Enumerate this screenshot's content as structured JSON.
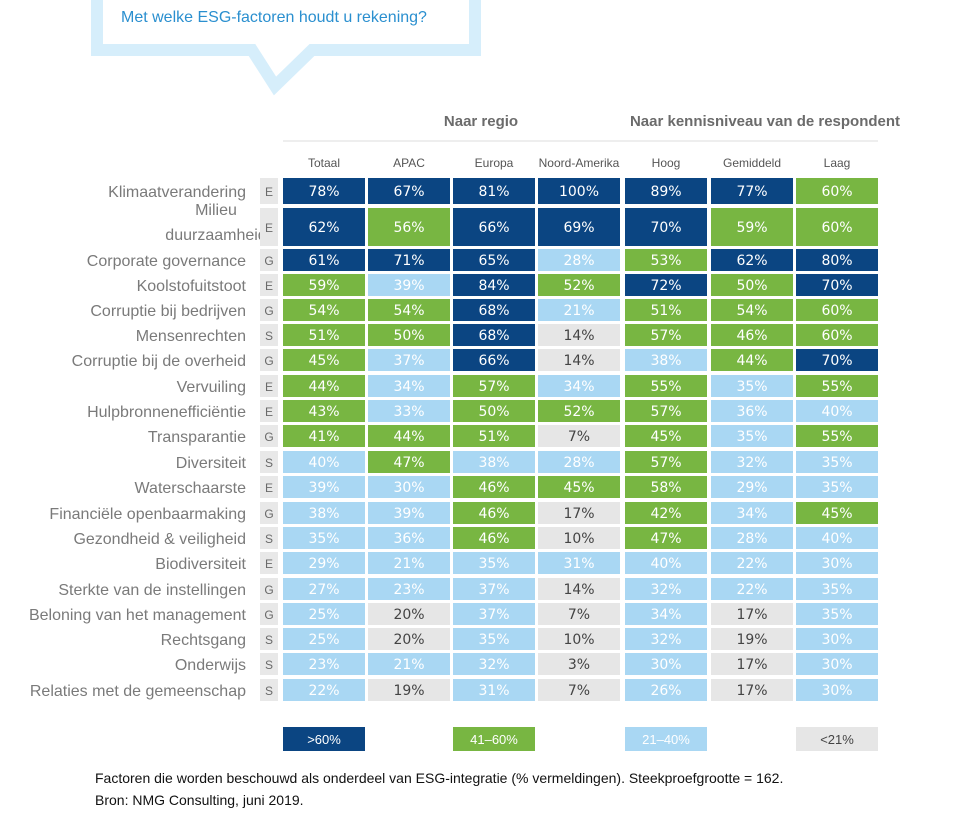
{
  "question": "Met welke ESG-factoren houdt u rekening?",
  "chart_data": {
    "type": "table",
    "title": "Met welke ESG-factoren houdt u rekening?",
    "group_headers": [
      "Naar regio",
      "Naar kennisniveau van de respondent"
    ],
    "columns": [
      "Totaal",
      "APAC",
      "Europa",
      "Noord-Amerika",
      "Hoog",
      "Gemiddeld",
      "Laag"
    ],
    "rows": [
      {
        "label": [
          "Klimaatverandering"
        ],
        "category": "E",
        "values": [
          78,
          67,
          81,
          100,
          89,
          77,
          60
        ]
      },
      {
        "label": [
          "Milieu",
          "duurzaamheid"
        ],
        "category": "E",
        "values": [
          62,
          56,
          66,
          69,
          70,
          59,
          60
        ]
      },
      {
        "label": [
          "Corporate governance"
        ],
        "category": "G",
        "values": [
          61,
          71,
          65,
          28,
          53,
          62,
          80
        ]
      },
      {
        "label": [
          "Koolstofuitstoot"
        ],
        "category": "E",
        "values": [
          59,
          39,
          84,
          52,
          72,
          50,
          70
        ]
      },
      {
        "label": [
          "Corruptie bij bedrijven"
        ],
        "category": "G",
        "values": [
          54,
          54,
          68,
          21,
          51,
          54,
          60
        ]
      },
      {
        "label": [
          "Mensenrechten"
        ],
        "category": "S",
        "values": [
          51,
          50,
          68,
          14,
          57,
          46,
          60
        ]
      },
      {
        "label": [
          "Corruptie bij de overheid"
        ],
        "category": "G",
        "values": [
          45,
          37,
          66,
          14,
          38,
          44,
          70
        ]
      },
      {
        "label": [
          "Vervuiling"
        ],
        "category": "E",
        "values": [
          44,
          34,
          57,
          34,
          55,
          35,
          55
        ]
      },
      {
        "label": [
          "Hulpbronnenefficiëntie"
        ],
        "category": "E",
        "values": [
          43,
          33,
          50,
          52,
          57,
          36,
          40
        ]
      },
      {
        "label": [
          "Transparantie"
        ],
        "category": "G",
        "values": [
          41,
          44,
          51,
          7,
          45,
          35,
          55
        ]
      },
      {
        "label": [
          "Diversiteit"
        ],
        "category": "S",
        "values": [
          40,
          47,
          38,
          28,
          57,
          32,
          35
        ]
      },
      {
        "label": [
          "Waterschaarste"
        ],
        "category": "E",
        "values": [
          39,
          30,
          46,
          45,
          58,
          29,
          35
        ]
      },
      {
        "label": [
          "Financiële openbaarmaking"
        ],
        "category": "G",
        "values": [
          38,
          39,
          46,
          17,
          42,
          34,
          45
        ]
      },
      {
        "label": [
          "Gezondheid & veiligheid"
        ],
        "category": "S",
        "values": [
          35,
          36,
          46,
          10,
          47,
          28,
          40
        ]
      },
      {
        "label": [
          "Biodiversiteit"
        ],
        "category": "E",
        "values": [
          29,
          21,
          35,
          31,
          40,
          22,
          30
        ]
      },
      {
        "label": [
          "Sterkte van de instellingen"
        ],
        "category": "G",
        "values": [
          27,
          23,
          37,
          14,
          32,
          22,
          35
        ]
      },
      {
        "label": [
          "Beloning van het management"
        ],
        "category": "G",
        "values": [
          25,
          20,
          37,
          7,
          34,
          17,
          35
        ]
      },
      {
        "label": [
          "Rechtsgang"
        ],
        "category": "S",
        "values": [
          25,
          20,
          35,
          10,
          32,
          19,
          30
        ]
      },
      {
        "label": [
          "Onderwijs"
        ],
        "category": "S",
        "values": [
          23,
          21,
          32,
          3,
          30,
          17,
          30
        ]
      },
      {
        "label": [
          "Relaties met de gemeenschap"
        ],
        "category": "S",
        "values": [
          22,
          19,
          31,
          7,
          26,
          17,
          30
        ]
      }
    ],
    "unit_suffix": "%",
    "legend": [
      {
        "label": ">60%",
        "color": "#0b4582",
        "text_color": "#ffffff"
      },
      {
        "label": "41–60%",
        "color": "#78b642",
        "text_color": "#ffffff"
      },
      {
        "label": "21–40%",
        "color": "#a9d7f3",
        "text_color": "#ffffff"
      },
      {
        "label": "<21%",
        "color": "#e6e6e6",
        "text_color": "#444444"
      }
    ],
    "legend_placement": "bottom"
  },
  "footnote": {
    "line1": "Factoren die worden beschouwd als onderdeel van ESG-integratie (% vermeldingen). Steekproefgrootte = 162.",
    "line2": "Bron: NMG Consulting, juni 2019."
  },
  "colors": {
    "dark_blue": "#0b4582",
    "green": "#78b642",
    "light_blue": "#a9d7f3",
    "gray": "#e6e6e6",
    "accent": "#2a8fcf",
    "bubble_outline": "#d6eefb"
  }
}
